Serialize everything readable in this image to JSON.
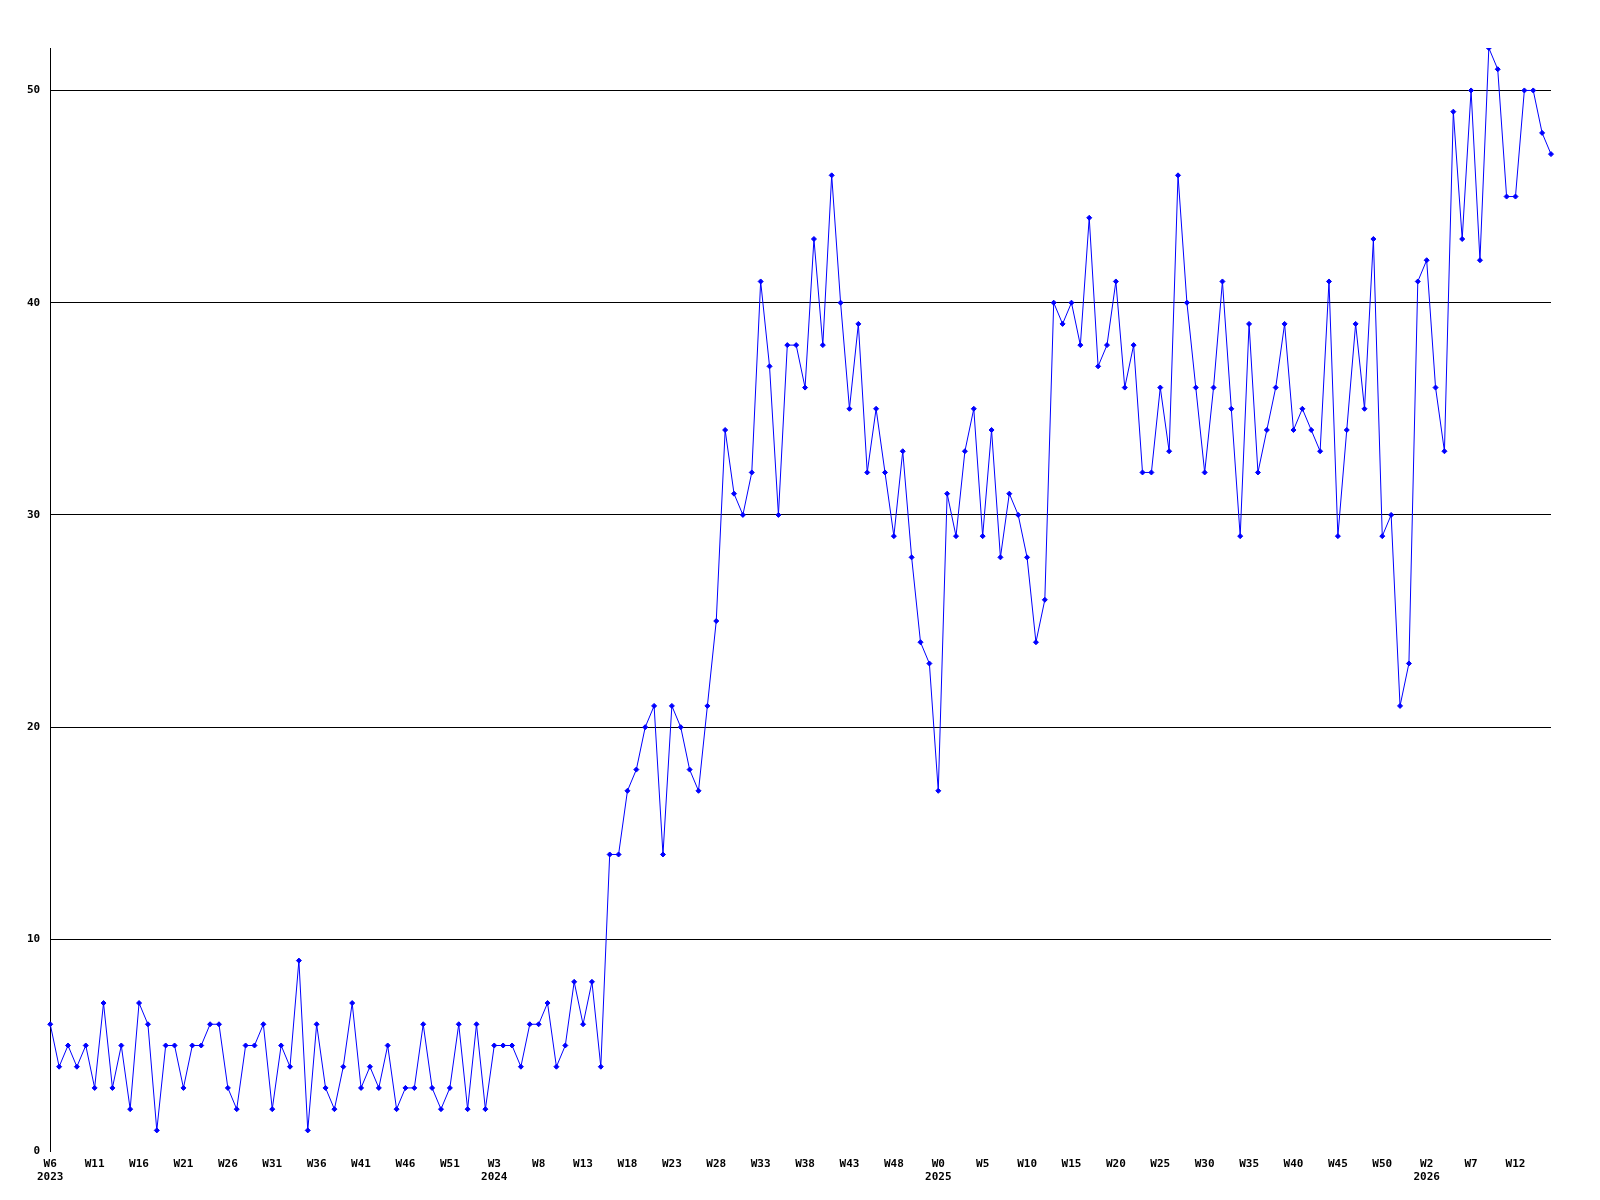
{
  "chart_data": {
    "type": "line",
    "categories": [
      "W6\n2023",
      null,
      null,
      null,
      null,
      "W11",
      null,
      null,
      null,
      null,
      "W16",
      null,
      null,
      null,
      null,
      "W21",
      null,
      null,
      null,
      null,
      "W26",
      null,
      null,
      null,
      null,
      "W31",
      null,
      null,
      null,
      null,
      "W36",
      null,
      null,
      null,
      null,
      "W41",
      null,
      null,
      null,
      null,
      "W46",
      null,
      null,
      null,
      null,
      "W51",
      null,
      null,
      null,
      null,
      "W3\n2024",
      null,
      null,
      null,
      null,
      "W8",
      null,
      null,
      null,
      null,
      "W13",
      null,
      null,
      null,
      null,
      "W18",
      null,
      null,
      null,
      null,
      "W23",
      null,
      null,
      null,
      null,
      "W28",
      null,
      null,
      null,
      null,
      "W33",
      null,
      null,
      null,
      null,
      "W38",
      null,
      null,
      null,
      null,
      "W43",
      null,
      null,
      null,
      null,
      "W48",
      null,
      null,
      null,
      null,
      "W0\n2025",
      null,
      null,
      null,
      null,
      "W5",
      null,
      null,
      null,
      null,
      "W10",
      null,
      null,
      null,
      null,
      "W15",
      null,
      null,
      null,
      null,
      "W20",
      null,
      null,
      null,
      null,
      "W25",
      null,
      null,
      null,
      null,
      "W30",
      null,
      null,
      null,
      null,
      "W35",
      null,
      null,
      null,
      null,
      "W40",
      null,
      null,
      null,
      null,
      "W45",
      null,
      null,
      null,
      null,
      "W50",
      null,
      null,
      null,
      null,
      "W2\n2026",
      null,
      null,
      null,
      null,
      "W7",
      null,
      null,
      null,
      null,
      "W12",
      null,
      null,
      null,
      null
    ],
    "series": [
      {
        "color": "#0000ff",
        "values": [
          6,
          4,
          5,
          4,
          5,
          3,
          7,
          3,
          5,
          2,
          7,
          6,
          1,
          5,
          5,
          3,
          5,
          5,
          6,
          6,
          3,
          2,
          5,
          5,
          6,
          2,
          5,
          4,
          9,
          1,
          6,
          3,
          2,
          4,
          7,
          3,
          4,
          3,
          5,
          2,
          3,
          3,
          6,
          3,
          2,
          3,
          6,
          2,
          6,
          2,
          5,
          5,
          5,
          4,
          6,
          6,
          7,
          4,
          5,
          8,
          6,
          8,
          4,
          14,
          14,
          17,
          18,
          20,
          21,
          14,
          21,
          20,
          18,
          17,
          21,
          25,
          34,
          31,
          30,
          32,
          41,
          37,
          30,
          38,
          38,
          36,
          43,
          38,
          46,
          40,
          35,
          39,
          32,
          35,
          32,
          29,
          33,
          28,
          24,
          23,
          17,
          31,
          29,
          33,
          35,
          29,
          34,
          28,
          31,
          30,
          28,
          24,
          26,
          40,
          39,
          40,
          38,
          44,
          37,
          38,
          41,
          36,
          38,
          32,
          32,
          36,
          33,
          46,
          40,
          36,
          32,
          36,
          41,
          35,
          29,
          39,
          32,
          34,
          36,
          39,
          34,
          35,
          34,
          33,
          41,
          29,
          34,
          39,
          35,
          43,
          29,
          30,
          21,
          23,
          41,
          42,
          36,
          33,
          49,
          43,
          50,
          42,
          52,
          51,
          45,
          45,
          50,
          50,
          48,
          47
        ]
      }
    ],
    "ylim": [
      0,
      52
    ],
    "yticks": [
      0,
      10,
      20,
      30,
      40,
      50
    ],
    "grid": "y",
    "legend": false,
    "marker": "diamond",
    "line_style": "solid"
  }
}
